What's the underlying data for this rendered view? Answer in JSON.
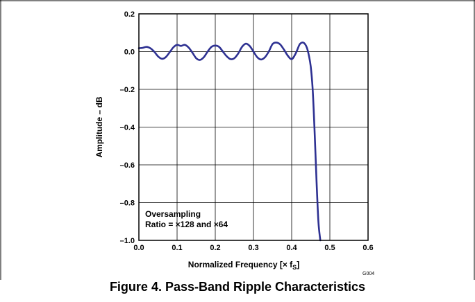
{
  "chart_data": {
    "type": "line",
    "xlabel": "Normalized Frequency [× f",
    "xlabel_sub": "S",
    "xlabel_close": "]",
    "ylabel": "Amplitude – dB",
    "xlim": [
      0,
      0.6
    ],
    "ylim": [
      -1.0,
      0.2
    ],
    "x_ticks": [
      0.0,
      0.1,
      0.2,
      0.3,
      0.4,
      0.5,
      0.6
    ],
    "x_tick_labels": [
      "0.0",
      "0.1",
      "0.2",
      "0.3",
      "0.4",
      "0.5",
      "0.6"
    ],
    "y_ticks": [
      0.2,
      0.0,
      -0.2,
      -0.4,
      -0.6,
      -0.8,
      -1.0
    ],
    "y_tick_labels": [
      "0.2",
      "0.0",
      "–0.2",
      "–0.4",
      "–0.6",
      "–0.8",
      "–1.0"
    ],
    "grid": true,
    "annotation_line1": "Oversampling",
    "annotation_line2": "Ratio = ×128 and ×64",
    "code": "G004",
    "series": [
      {
        "color": "#2e3192",
        "x": [
          0.0,
          0.01,
          0.02,
          0.03,
          0.04,
          0.05,
          0.06,
          0.07,
          0.08,
          0.09,
          0.1,
          0.11,
          0.12,
          0.13,
          0.14,
          0.15,
          0.16,
          0.17,
          0.18,
          0.19,
          0.2,
          0.21,
          0.22,
          0.23,
          0.24,
          0.25,
          0.26,
          0.27,
          0.28,
          0.29,
          0.3,
          0.31,
          0.32,
          0.33,
          0.34,
          0.35,
          0.36,
          0.37,
          0.38,
          0.39,
          0.4,
          0.41,
          0.42,
          0.425,
          0.43,
          0.435,
          0.44,
          0.445,
          0.45,
          0.455,
          0.46,
          0.465,
          0.47,
          0.475
        ],
        "y": [
          0.018,
          0.02,
          0.025,
          0.018,
          0.0,
          -0.025,
          -0.038,
          -0.03,
          -0.005,
          0.022,
          0.036,
          0.03,
          0.036,
          0.022,
          -0.005,
          -0.035,
          -0.044,
          -0.03,
          0.0,
          0.025,
          0.032,
          0.025,
          0.0,
          -0.025,
          -0.04,
          -0.035,
          -0.01,
          0.025,
          0.042,
          0.03,
          0.0,
          -0.03,
          -0.042,
          -0.03,
          0.0,
          0.04,
          0.048,
          0.038,
          0.01,
          -0.022,
          -0.04,
          -0.012,
          0.035,
          0.046,
          0.048,
          0.04,
          0.02,
          -0.02,
          -0.08,
          -0.2,
          -0.42,
          -0.68,
          -0.9,
          -1.0
        ]
      }
    ]
  },
  "figure": {
    "caption": "Figure 4. Pass-Band Ripple Characteristics"
  }
}
